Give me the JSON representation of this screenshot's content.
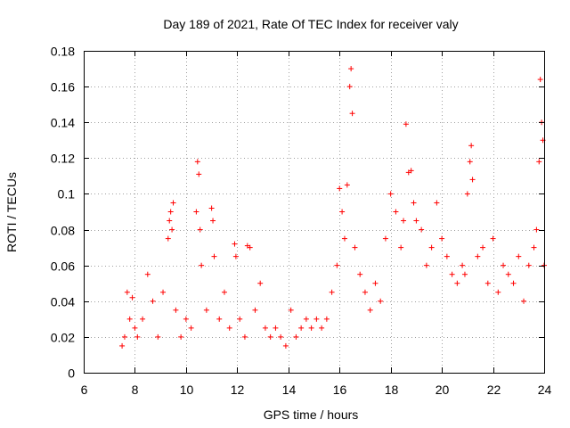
{
  "chart_data": {
    "type": "scatter",
    "title": "Day 189 of 2021, Rate Of TEC Index for receiver valy",
    "xlabel": "GPS time / hours",
    "ylabel": "ROTI / TECUs",
    "xlim": [
      6,
      24
    ],
    "ylim": [
      0,
      0.18
    ],
    "xticks": [
      "6",
      "8",
      "10",
      "12",
      "14",
      "16",
      "18",
      "20",
      "22",
      "24"
    ],
    "yticks": [
      "0",
      "0.02",
      "0.04",
      "0.06",
      "0.08",
      "0.1",
      "0.12",
      "0.14",
      "0.16",
      "0.18"
    ],
    "grid": true,
    "marker": "+",
    "color": "#ff0000",
    "series": [
      {
        "name": "ROTI",
        "x": [
          7.5,
          7.6,
          7.7,
          7.8,
          7.9,
          8.0,
          8.1,
          8.3,
          8.5,
          8.7,
          8.9,
          9.1,
          9.3,
          9.35,
          9.4,
          9.45,
          9.5,
          9.6,
          9.8,
          10.0,
          10.2,
          10.4,
          10.45,
          10.5,
          10.55,
          10.6,
          10.8,
          11.0,
          11.05,
          11.1,
          11.3,
          11.5,
          11.7,
          11.9,
          11.95,
          12.1,
          12.3,
          12.4,
          12.5,
          12.7,
          12.9,
          13.1,
          13.3,
          13.5,
          13.7,
          13.9,
          14.1,
          14.3,
          14.5,
          14.7,
          14.9,
          15.1,
          15.3,
          15.5,
          15.7,
          15.9,
          16.0,
          16.1,
          16.2,
          16.3,
          16.4,
          16.45,
          16.5,
          16.6,
          16.8,
          17.0,
          17.2,
          17.4,
          17.6,
          17.8,
          18.0,
          18.2,
          18.4,
          18.5,
          18.6,
          18.7,
          18.8,
          18.9,
          19.0,
          19.2,
          19.4,
          19.6,
          19.8,
          20.0,
          20.2,
          20.4,
          20.6,
          20.8,
          20.9,
          21.0,
          21.1,
          21.15,
          21.2,
          21.4,
          21.6,
          21.8,
          22.0,
          22.2,
          22.4,
          22.6,
          22.8,
          23.0,
          23.2,
          23.4,
          23.6,
          23.7,
          23.8,
          23.85,
          23.9,
          23.95,
          24.0
        ],
        "y": [
          0.015,
          0.02,
          0.045,
          0.03,
          0.042,
          0.025,
          0.02,
          0.03,
          0.055,
          0.04,
          0.02,
          0.045,
          0.075,
          0.085,
          0.09,
          0.08,
          0.095,
          0.035,
          0.02,
          0.03,
          0.025,
          0.09,
          0.118,
          0.111,
          0.08,
          0.06,
          0.035,
          0.092,
          0.085,
          0.065,
          0.03,
          0.045,
          0.025,
          0.072,
          0.065,
          0.03,
          0.02,
          0.071,
          0.07,
          0.035,
          0.05,
          0.025,
          0.02,
          0.025,
          0.02,
          0.015,
          0.035,
          0.02,
          0.025,
          0.03,
          0.025,
          0.03,
          0.025,
          0.03,
          0.045,
          0.06,
          0.103,
          0.09,
          0.075,
          0.105,
          0.16,
          0.17,
          0.145,
          0.07,
          0.055,
          0.045,
          0.035,
          0.05,
          0.04,
          0.075,
          0.1,
          0.09,
          0.07,
          0.085,
          0.139,
          0.112,
          0.113,
          0.095,
          0.085,
          0.08,
          0.06,
          0.07,
          0.095,
          0.075,
          0.065,
          0.055,
          0.05,
          0.06,
          0.055,
          0.1,
          0.118,
          0.127,
          0.108,
          0.065,
          0.07,
          0.05,
          0.075,
          0.045,
          0.06,
          0.055,
          0.05,
          0.065,
          0.04,
          0.06,
          0.07,
          0.08,
          0.118,
          0.164,
          0.14,
          0.13,
          0.06
        ]
      }
    ]
  }
}
